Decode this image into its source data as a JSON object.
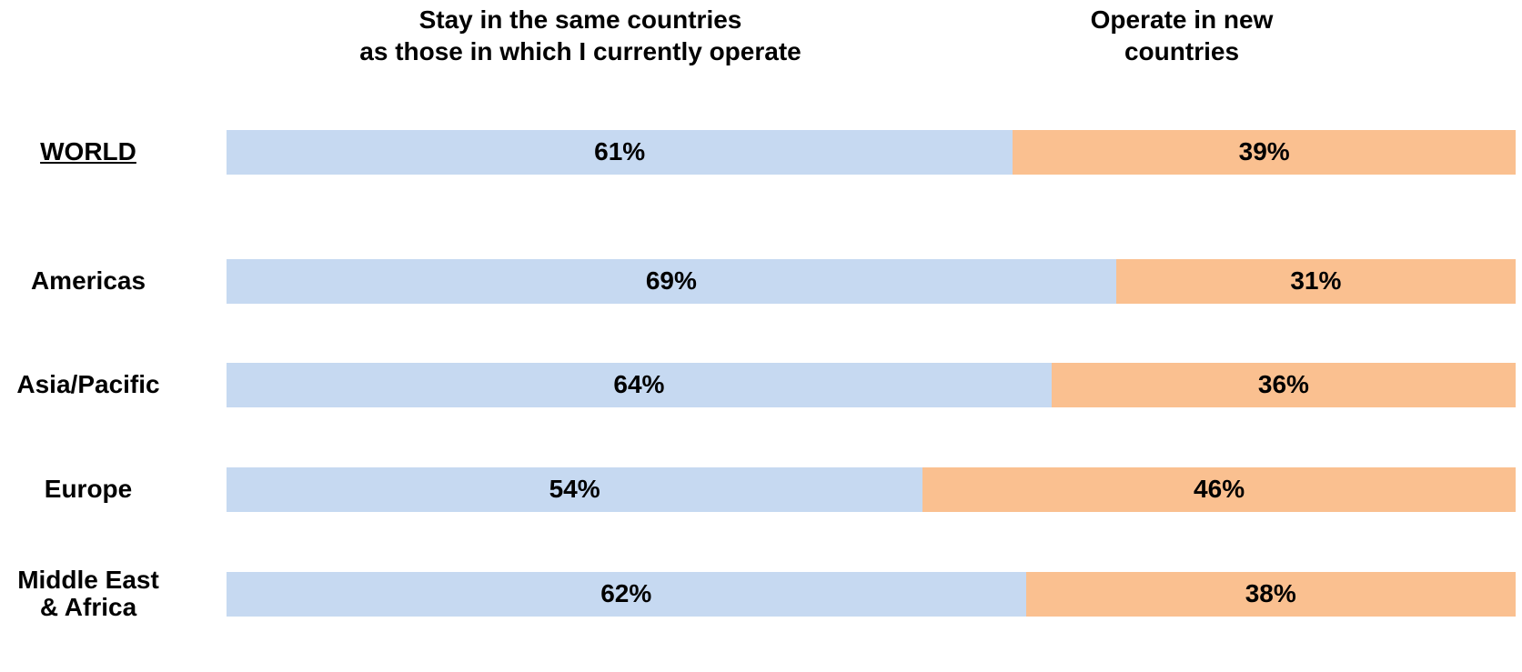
{
  "chart_data": {
    "type": "bar",
    "orientation": "horizontal",
    "stacked": true,
    "percent_stacked": true,
    "series_headers": [
      [
        "Stay in the same countries",
        "as those in which I currently operate"
      ],
      [
        "Operate in new",
        "countries"
      ]
    ],
    "categories": [
      [
        "WORLD"
      ],
      [
        "Americas"
      ],
      [
        "Asia/Pacific"
      ],
      [
        "Europe"
      ],
      [
        "Middle East",
        "& Africa"
      ]
    ],
    "underlined_categories": [
      0
    ],
    "series": [
      {
        "values": [
          61,
          69,
          64,
          54,
          62
        ],
        "labels": [
          "61%",
          "69%",
          "64%",
          "54%",
          "62%"
        ],
        "color": "#c6d9f1"
      },
      {
        "values": [
          39,
          31,
          36,
          46,
          38
        ],
        "labels": [
          "39%",
          "31%",
          "36%",
          "46%",
          "38%"
        ],
        "color": "#fac090"
      }
    ],
    "xlim": [
      0,
      100
    ],
    "grid": false,
    "legend": "none"
  }
}
